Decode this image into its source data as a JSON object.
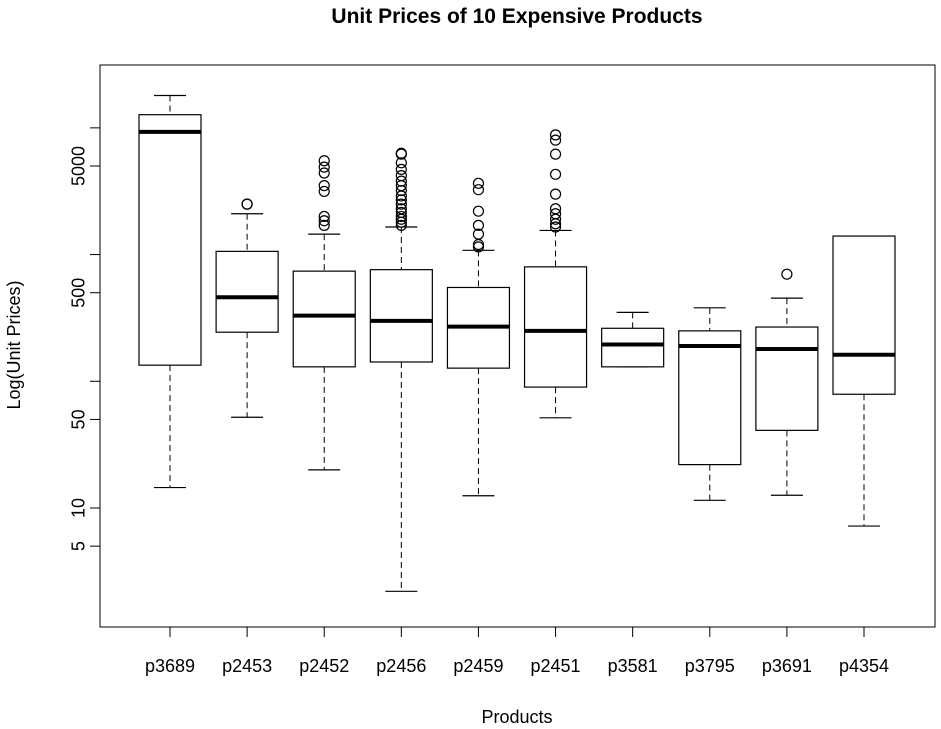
{
  "chart_data": {
    "type": "boxplot",
    "title": "Unit Prices of 10 Expensive Products",
    "xlabel": "Products",
    "ylabel": "Log(Unit Prices)",
    "y_scale": "log",
    "y_ticks": [
      5,
      10,
      50,
      500,
      5000
    ],
    "y_tick_labels": [
      "5",
      "10",
      "50",
      "500",
      "5000"
    ],
    "ylim": [
      1.25,
      28000
    ],
    "categories": [
      "p3689",
      "p2453",
      "p2452",
      "p2456",
      "p2459",
      "p2451",
      "p3581",
      "p3795",
      "p3691",
      "p4354"
    ],
    "boxes": [
      {
        "name": "p3689",
        "min": 14.5,
        "q1": 134,
        "median": 9300,
        "q3": 12700,
        "max": 18000,
        "outliers": []
      },
      {
        "name": "p2453",
        "min": 52,
        "q1": 244,
        "median": 460,
        "q3": 1060,
        "max": 2100,
        "outliers": [
          2500,
          2500
        ]
      },
      {
        "name": "p2452",
        "min": 20,
        "q1": 130,
        "median": 330,
        "q3": 740,
        "max": 1450,
        "outliers": [
          1700,
          1850,
          2000,
          3150,
          3500,
          4400,
          4900,
          5500
        ]
      },
      {
        "name": "p2456",
        "min": 2.2,
        "q1": 142,
        "median": 300,
        "q3": 760,
        "max": 1650,
        "outliers": [
          1700,
          1800,
          1900,
          2000,
          2150,
          2300,
          2500,
          2700,
          2900,
          3200,
          3500,
          3800,
          4200,
          4700,
          5300,
          6200,
          6300
        ]
      },
      {
        "name": "p2459",
        "min": 12.5,
        "q1": 127,
        "median": 270,
        "q3": 550,
        "max": 1080,
        "outliers": [
          1150,
          1200,
          1450,
          1700,
          2200,
          3250,
          3650
        ]
      },
      {
        "name": "p2451",
        "min": 51.5,
        "q1": 90,
        "median": 250,
        "q3": 800,
        "max": 1550,
        "outliers": [
          1650,
          1750,
          1900,
          2100,
          2300,
          3000,
          4300,
          6200,
          8000,
          8800
        ]
      },
      {
        "name": "p3581",
        "min": 130,
        "q1": 130,
        "median": 195,
        "q3": 262,
        "max": 350,
        "outliers": []
      },
      {
        "name": "p3795",
        "min": 11.5,
        "q1": 22,
        "median": 190,
        "q3": 250,
        "max": 380,
        "outliers": []
      },
      {
        "name": "p3691",
        "min": 12.6,
        "q1": 41,
        "median": 180,
        "q3": 268,
        "max": 453,
        "outliers": [
          700
        ]
      },
      {
        "name": "p4354",
        "min": 7.2,
        "q1": 79,
        "median": 162,
        "q3": 1400,
        "max": 1400,
        "outliers": []
      }
    ]
  }
}
